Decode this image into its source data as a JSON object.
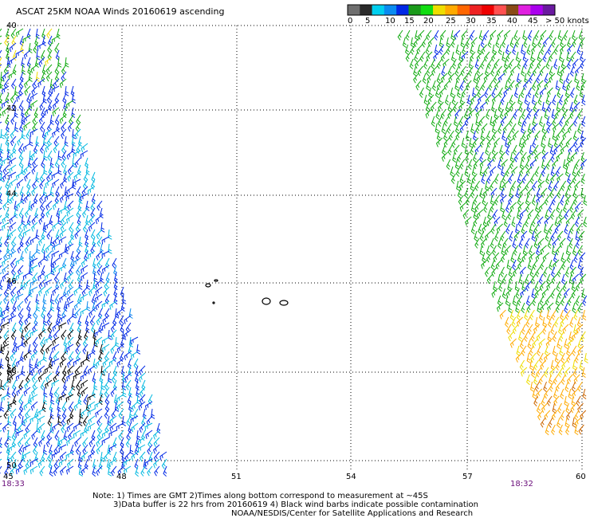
{
  "title": "ASCAT 25KM NOAA Winds 20160619 ascending",
  "colorbar": {
    "colors": [
      "#6e6e6e",
      "#2a2a2a",
      "#00cfef",
      "#0a8bf0",
      "#0028e6",
      "#1a9a1a",
      "#11dd11",
      "#eedd00",
      "#ffaa00",
      "#ff6600",
      "#ee2222",
      "#ee0000",
      "#ff5050",
      "#8a4a16",
      "#e020e0",
      "#aa00ee",
      "#6a1aa0"
    ],
    "labels": [
      "0",
      "5",
      "10",
      "15",
      "20",
      "25",
      "30",
      "35",
      "40",
      "45",
      "> 50 knots"
    ]
  },
  "lat_labels": [
    "40",
    "42",
    "44",
    "46",
    "48",
    "50"
  ],
  "lon_labels": [
    "45",
    "48",
    "51",
    "54",
    "57",
    "60"
  ],
  "time_labels": {
    "left": "18:33",
    "right": "18:32"
  },
  "notes": {
    "line1": "Note: 1) Times are GMT 2)Times along bottom correspond to measurement at ~45S",
    "line2": "3)Data buffer is 22 hrs from 20160619 4) Black wind barbs indicate possible contamination",
    "line3": "NOAA/NESDIS/Center for Satellite Applications and Research"
  }
}
